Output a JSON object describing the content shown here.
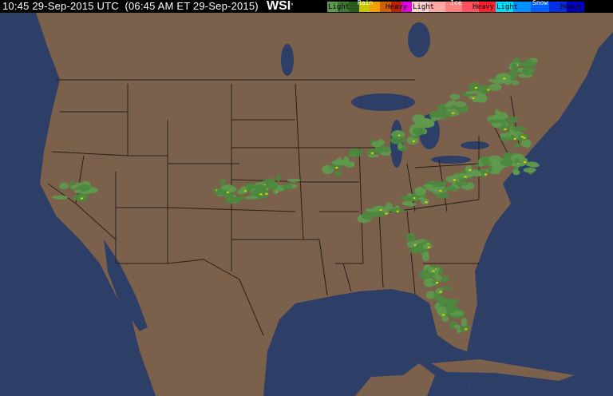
{
  "header": {
    "timestamp": "10:45 29-Sep-2015 UTC  (06:45 AM ET 29-Sep-2015)",
    "logo": "WSI",
    "logo_mark": "°"
  },
  "legend": {
    "rain": {
      "title": "Rain",
      "light": "Light",
      "heavy": "Heavy",
      "colors": [
        "#5e9a4e",
        "#3f7a33",
        "#2a5a1e",
        "#c8c800",
        "#f0a000",
        "#d06000",
        "#c02000",
        "#e000e0"
      ]
    },
    "ice": {
      "title": "Ice",
      "light": "Light",
      "heavy": "Heavy",
      "colors": [
        "#ffd0d0",
        "#ffa8a8",
        "#ff8080",
        "#ff5060",
        "#ff2030"
      ]
    },
    "snow": {
      "title": "Snow",
      "light": "Light",
      "heavy": "Heavy",
      "colors": [
        "#00e0ff",
        "#0090ff",
        "#0060ff",
        "#0030e0",
        "#0000c0"
      ]
    }
  },
  "map": {
    "land_color": "#7b604b",
    "water_color": "#2e3f67",
    "border_color": "#2a2018",
    "precip_type": "rain"
  }
}
